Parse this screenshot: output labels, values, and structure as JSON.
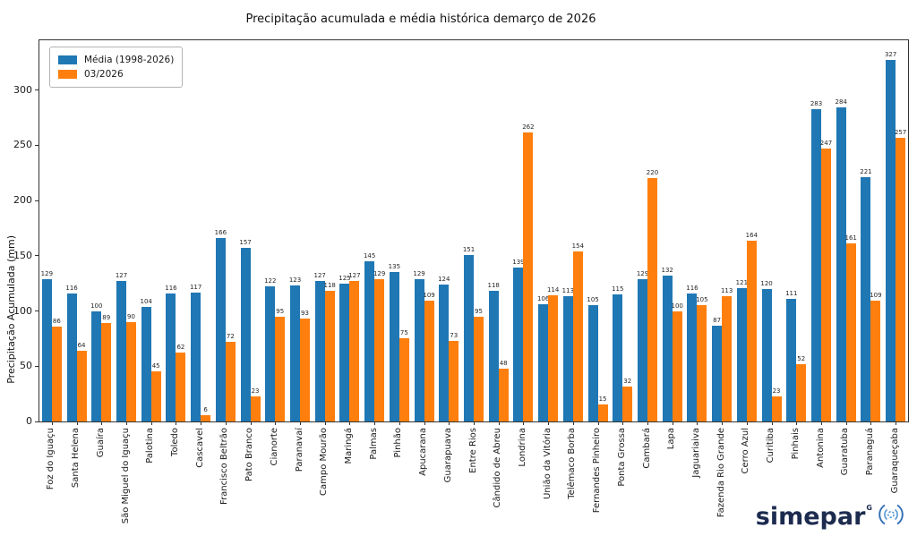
{
  "title": "Precipitação acumulada e média histórica demarço de 2026",
  "ylabel": "Precipitação Acumulada (mm)",
  "logo": {
    "text": "simepar",
    "mark": "G",
    "icon": "signal-waves-icon",
    "color": "#1d2b4f",
    "icon_color": "#3c7fc0"
  },
  "chart_data": {
    "type": "bar",
    "title": "Precipitação acumulada e média histórica demarço de 2026",
    "xlabel": "",
    "ylabel": "Precipitação Acumulada (mm)",
    "ylim": [
      0,
      345
    ],
    "yticks": [
      0,
      50,
      100,
      150,
      200,
      250,
      300
    ],
    "grid": false,
    "legend_position": "upper-left",
    "bar_value_labels": true,
    "categories": [
      "Foz do Iguaçu",
      "Santa Helena",
      "Guaíra",
      "São Miguel do Iguaçu",
      "Palotina",
      "Toledo",
      "Cascavel",
      "Francisco Beltrão",
      "Pato Branco",
      "Cianorte",
      "Paranavaí",
      "Campo Mourão",
      "Maringá",
      "Palmas",
      "Pinhão",
      "Apucarana",
      "Guarapuava",
      "Entre Rios",
      "Cândido de Abreu",
      "Londrina",
      "União da Vitória",
      "Telêmaco Borba",
      "Fernandes Pinheiro",
      "Ponta Grossa",
      "Cambará",
      "Lapa",
      "Jaguariaiva",
      "Fazenda Rio Grande",
      "Cerro Azul",
      "Curitiba",
      "Pinhais",
      "Antonina",
      "Guaratuba",
      "Paranaguá",
      "Guaraqueçaba"
    ],
    "series": [
      {
        "name": "Média (1998-2026)",
        "color": "#1f77b4",
        "values": [
          129,
          116,
          100,
          127,
          104,
          116,
          117,
          166,
          157,
          122,
          123,
          127,
          125,
          145,
          135,
          129,
          124,
          151,
          118,
          139,
          106,
          113,
          105,
          115,
          129,
          132,
          116,
          87,
          121,
          120,
          111,
          283,
          284,
          221,
          327
        ]
      },
      {
        "name": "03/2026",
        "color": "#ff7f0e",
        "values": [
          86,
          64,
          89,
          90,
          45,
          62,
          6,
          72,
          23,
          95,
          93,
          118,
          127,
          129,
          75,
          109,
          73,
          95,
          48,
          262,
          114,
          154,
          15,
          32,
          220,
          100,
          105,
          113,
          164,
          23,
          52,
          247,
          161,
          109,
          257
        ]
      }
    ]
  }
}
